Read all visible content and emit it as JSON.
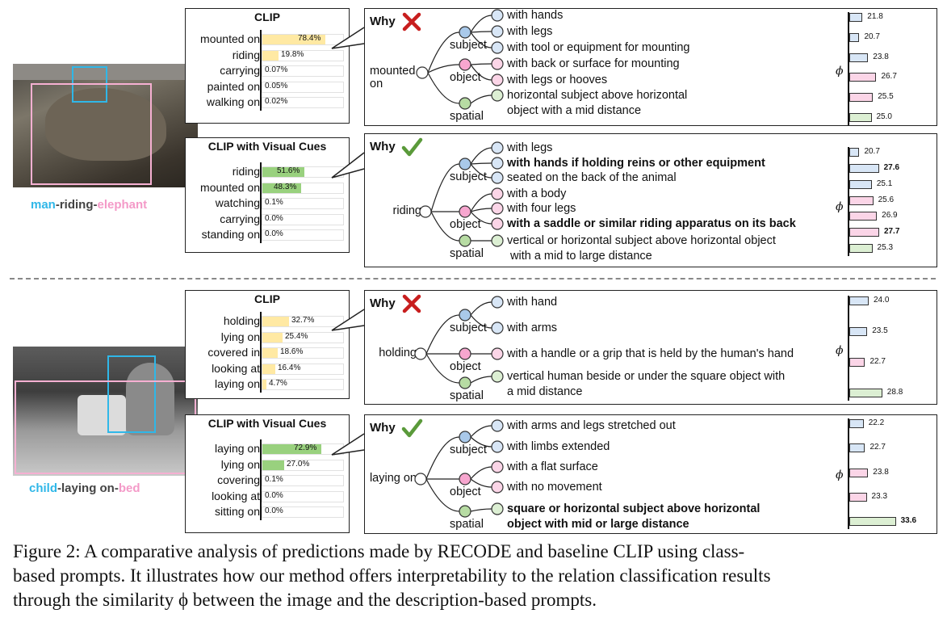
{
  "colors": {
    "subject": "#2fb7e8",
    "object": "#f49ac8",
    "clip_bar": "#ffe9a3",
    "cue_bar": "#99d17e",
    "node_subject": "#a9c9ea",
    "node_object": "#f7a6cf",
    "node_spatial": "#b7dca3",
    "phi_subject": "#d8e6f6",
    "phi_object": "#fbd5e7",
    "phi_spatial": "#dcefd3",
    "cross": "#c81e1e",
    "check": "#5a9a3a"
  },
  "icons": {
    "cross": "cross-icon",
    "check": "checkmark-icon"
  },
  "examples": [
    {
      "triplet": {
        "subject": "man",
        "relation": "-riding-",
        "object": "elephant"
      },
      "panels": [
        {
          "title": "CLIP",
          "bar_color": "#ffe9a3",
          "predictions": [
            {
              "label": "mounted on",
              "value": "78.4%",
              "fraction": 0.784
            },
            {
              "label": "riding",
              "value": "19.8%",
              "fraction": 0.198
            },
            {
              "label": "carrying",
              "value": "0.07%",
              "fraction": 0.0007
            },
            {
              "label": "painted on",
              "value": "0.05%",
              "fraction": 0.0005
            },
            {
              "label": "walking on",
              "value": "0.02%",
              "fraction": 0.0002
            }
          ],
          "why": "Why",
          "verdict": "cross",
          "relation_lines": [
            "mounted",
            "on"
          ],
          "groups": [
            "subject",
            "object",
            "spatial"
          ],
          "descriptions": [
            {
              "text": [
                "with hands"
              ],
              "group": "subject",
              "phi": "21.8",
              "phi_value": 21.8,
              "bold": false
            },
            {
              "text": [
                "with legs"
              ],
              "group": "subject",
              "phi": "20.7",
              "phi_value": 20.7,
              "bold": false
            },
            {
              "text": [
                "with tool or equipment for mounting"
              ],
              "group": "subject",
              "phi": "23.8",
              "phi_value": 23.8,
              "bold": false
            },
            {
              "text": [
                "with back or surface for mounting"
              ],
              "group": "object",
              "phi": "26.7",
              "phi_value": 26.7,
              "bold": false
            },
            {
              "text": [
                "with legs or hooves"
              ],
              "group": "object",
              "phi": "25.5",
              "phi_value": 25.5,
              "bold": false
            },
            {
              "text": [
                "horizontal subject above horizontal",
                "object with a mid distance"
              ],
              "group": "spatial",
              "phi": "25.0",
              "phi_value": 25.0,
              "bold": false
            }
          ],
          "phi_symbol": "ϕ"
        },
        {
          "title": "CLIP with Visual Cues",
          "bar_color": "#99d17e",
          "predictions": [
            {
              "label": "riding",
              "value": "51.6%",
              "fraction": 0.516
            },
            {
              "label": "mounted on",
              "value": "48.3%",
              "fraction": 0.483
            },
            {
              "label": "watching",
              "value": "0.1%",
              "fraction": 0.001
            },
            {
              "label": "carrying",
              "value": "0.0%",
              "fraction": 0.0
            },
            {
              "label": "standing on",
              "value": "0.0%",
              "fraction": 0.0
            }
          ],
          "why": "Why",
          "verdict": "check",
          "relation_lines": [
            "riding"
          ],
          "groups": [
            "subject",
            "object",
            "spatial"
          ],
          "descriptions": [
            {
              "text": [
                "with legs"
              ],
              "group": "subject",
              "phi": "20.7",
              "phi_value": 20.7,
              "bold": false
            },
            {
              "text": [
                "with hands if holding reins or other equipment"
              ],
              "group": "subject",
              "phi": "27.6",
              "phi_value": 27.6,
              "bold": true
            },
            {
              "text": [
                "seated on the back of the animal"
              ],
              "group": "subject",
              "phi": "25.1",
              "phi_value": 25.1,
              "bold": false
            },
            {
              "text": [
                "with a body"
              ],
              "group": "object",
              "phi": "25.6",
              "phi_value": 25.6,
              "bold": false
            },
            {
              "text": [
                "with four legs"
              ],
              "group": "object",
              "phi": "26.9",
              "phi_value": 26.9,
              "bold": false
            },
            {
              "text": [
                "with a saddle or similar riding apparatus on its back"
              ],
              "group": "object",
              "phi": "27.7",
              "phi_value": 27.7,
              "bold": true
            },
            {
              "text": [
                "vertical or horizontal subject above horizontal object",
                " with a mid to large distance"
              ],
              "group": "spatial",
              "phi": "25.3",
              "phi_value": 25.3,
              "bold": false
            }
          ],
          "phi_symbol": "ϕ"
        }
      ]
    },
    {
      "triplet": {
        "subject": "child",
        "relation": "-laying on-",
        "object": "bed"
      },
      "panels": [
        {
          "title": "CLIP",
          "bar_color": "#ffe9a3",
          "predictions": [
            {
              "label": "holding",
              "value": "32.7%",
              "fraction": 0.327
            },
            {
              "label": "lying on",
              "value": "25.4%",
              "fraction": 0.254
            },
            {
              "label": "covered in",
              "value": "18.6%",
              "fraction": 0.186
            },
            {
              "label": "looking at",
              "value": "16.4%",
              "fraction": 0.164
            },
            {
              "label": "laying on",
              "value": "4.7%",
              "fraction": 0.047
            }
          ],
          "why": "Why",
          "verdict": "cross",
          "relation_lines": [
            "holding"
          ],
          "groups": [
            "subject",
            "object",
            "spatial"
          ],
          "descriptions": [
            {
              "text": [
                "with hand"
              ],
              "group": "subject",
              "phi": "24.0",
              "phi_value": 24.0,
              "bold": false
            },
            {
              "text": [
                "with arms"
              ],
              "group": "subject",
              "phi": "23.5",
              "phi_value": 23.5,
              "bold": false
            },
            {
              "text": [
                "with a handle or a grip that is held by the human's hand"
              ],
              "group": "object",
              "phi": "22.7",
              "phi_value": 22.7,
              "bold": false
            },
            {
              "text": [
                "vertical human beside or under the square object with",
                "a mid distance"
              ],
              "group": "spatial",
              "phi": "28.8",
              "phi_value": 28.8,
              "bold": false
            }
          ],
          "phi_symbol": "ϕ"
        },
        {
          "title": "CLIP with Visual Cues",
          "bar_color": "#99d17e",
          "predictions": [
            {
              "label": "laying on",
              "value": "72.9%",
              "fraction": 0.729
            },
            {
              "label": "lying on",
              "value": "27.0%",
              "fraction": 0.27
            },
            {
              "label": "covering",
              "value": "0.1%",
              "fraction": 0.001
            },
            {
              "label": "looking at",
              "value": "0.0%",
              "fraction": 0.0
            },
            {
              "label": "sitting on",
              "value": "0.0%",
              "fraction": 0.0
            }
          ],
          "why": "Why",
          "verdict": "check",
          "relation_lines": [
            "laying on"
          ],
          "groups": [
            "subject",
            "object",
            "spatial"
          ],
          "descriptions": [
            {
              "text": [
                "with arms and legs stretched out"
              ],
              "group": "subject",
              "phi": "22.2",
              "phi_value": 22.2,
              "bold": false
            },
            {
              "text": [
                "with limbs extended"
              ],
              "group": "subject",
              "phi": "22.7",
              "phi_value": 22.7,
              "bold": false
            },
            {
              "text": [
                "with a flat surface"
              ],
              "group": "object",
              "phi": "23.8",
              "phi_value": 23.8,
              "bold": false
            },
            {
              "text": [
                "with no movement"
              ],
              "group": "object",
              "phi": "23.3",
              "phi_value": 23.3,
              "bold": false
            },
            {
              "text": [
                "square or horizontal subject above horizontal",
                "object with mid or large distance"
              ],
              "group": "spatial",
              "phi": "33.6",
              "phi_value": 33.6,
              "bold": true
            }
          ],
          "phi_symbol": "ϕ"
        }
      ]
    }
  ],
  "caption": {
    "lines": [
      "Figure 2: A comparative analysis of predictions made by RECODE and baseline CLIP using class-",
      "based prompts. It illustrates how our method offers interpretability to the relation classification results",
      "through the similarity ϕ between the image and the description-based prompts."
    ]
  }
}
